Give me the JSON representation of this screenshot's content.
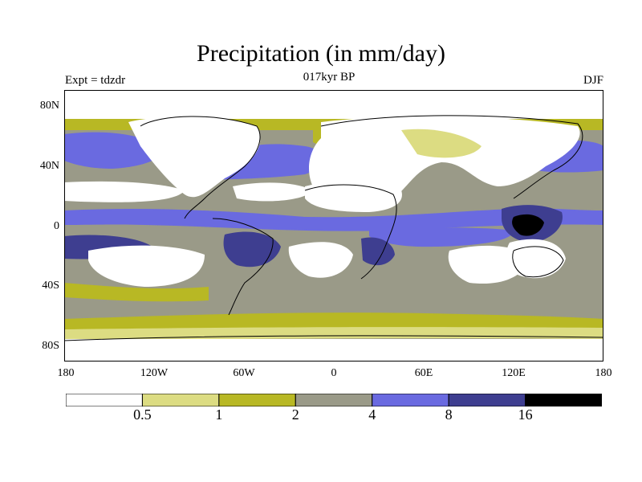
{
  "title": "Precipitation (in mm/day)",
  "expt_label": "Expt = tdzdr",
  "period_label": "017kyr BP",
  "season_label": "DJF",
  "lat_labels": [
    "80N",
    "40N",
    "0",
    "40S",
    "80S"
  ],
  "lon_labels": [
    "180",
    "120W",
    "60W",
    "0",
    "60E",
    "120E",
    "180"
  ],
  "colorbar": {
    "colors": [
      "#ffffff",
      "#dcdc82",
      "#b8b824",
      "#9a9a88",
      "#6a6ae0",
      "#3e3e90",
      "#000000"
    ],
    "tick_labels": [
      "0.5",
      "1",
      "2",
      "4",
      "8",
      "16"
    ]
  },
  "palette": {
    "white": "#ffffff",
    "light_yellow": "#dcdc82",
    "olive": "#b8b824",
    "gray": "#9a9a88",
    "light_blue": "#6a6ae0",
    "dark_blue": "#3e3e90",
    "black": "#000000"
  }
}
